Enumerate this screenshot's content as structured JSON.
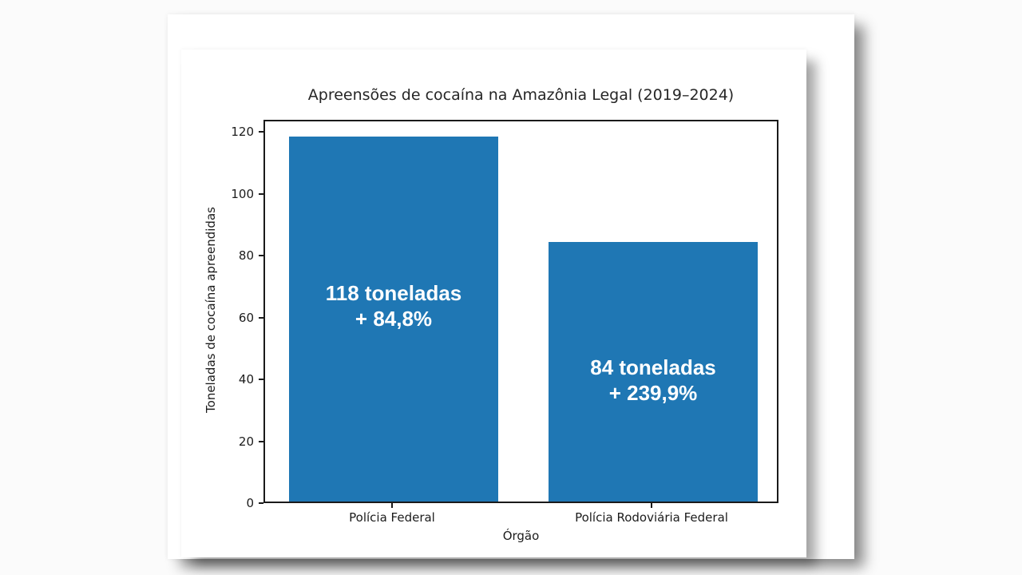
{
  "window": {
    "background_color": "#fbfbfb",
    "page_color": "#ffffff"
  },
  "chart_data": {
    "type": "bar",
    "title": "Apreensões de cocaína na Amazônia Legal (2019–2024)",
    "xlabel": "Órgão",
    "ylabel": "Toneladas de cocaína apreendidas",
    "categories": [
      "Polícia Federal",
      "Polícia Rodoviária Federal"
    ],
    "values": [
      118,
      84
    ],
    "bar_labels": [
      {
        "line1": "118 toneladas",
        "line2": "+ 84,8%"
      },
      {
        "line1": "84 toneladas",
        "line2": "+ 239,9%"
      }
    ],
    "bar_label_anchor_y": [
      64,
      40
    ],
    "yticks": [
      0,
      20,
      40,
      60,
      80,
      100,
      120
    ],
    "ylim": [
      0,
      124
    ],
    "grid": false,
    "legend": null,
    "bar_color": "#1f77b4",
    "bar_label_color": "#ffffff",
    "axis_color": "#1a1a1a",
    "text_color": "#262626"
  }
}
